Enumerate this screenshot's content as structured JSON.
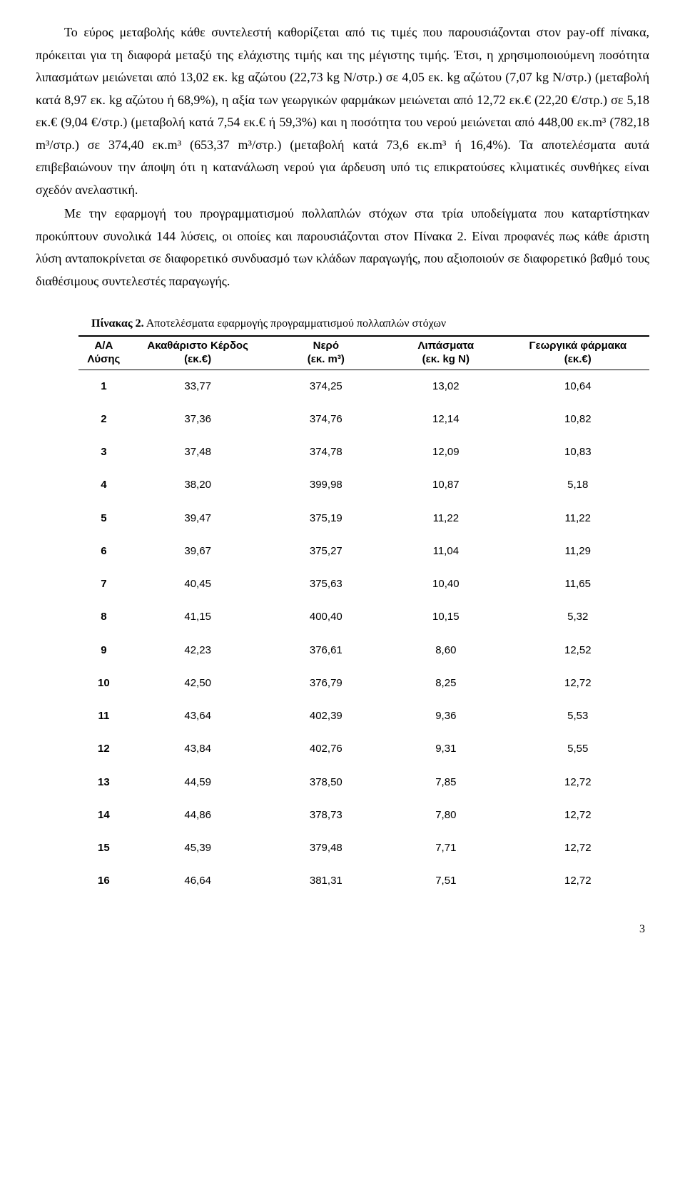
{
  "paragraphs": {
    "p1": "Το εύρος μεταβολής κάθε συντελεστή καθορίζεται από τις τιμές που παρουσιάζονται στον pay-off πίνακα, πρόκειται για τη διαφορά μεταξύ της ελάχιστης τιμής και της μέγιστης τιμής. Έτσι, η χρησιμοποιούμενη ποσότητα λιπασμάτων μειώνεται από 13,02 εκ. kg αζώτου (22,73 kg N/στρ.) σε 4,05 εκ. kg αζώτου (7,07 kg N/στρ.) (μεταβολή κατά 8,97 εκ. kg αζώτου ή 68,9%), η αξία των γεωργικών φαρμάκων μειώνεται από 12,72 εκ.€ (22,20 €/στρ.) σε 5,18 εκ.€ (9,04 €/στρ.) (μεταβολή κατά 7,54 εκ.€ ή 59,3%) και η ποσότητα του νερού μειώνεται από 448,00 εκ.m³ (782,18 m³/στρ.) σε 374,40 εκ.m³ (653,37 m³/στρ.) (μεταβολή κατά 73,6 εκ.m³ ή 16,4%). Τα αποτελέσματα αυτά επιβεβαιώνουν την άποψη ότι η κατανάλωση νερού για άρδευση υπό τις επικρατούσες κλιματικές συνθήκες είναι σχεδόν ανελαστική.",
    "p2": "Με την εφαρμογή του προγραμματισμού πολλαπλών στόχων στα τρία υποδείγματα που καταρτίστηκαν προκύπτουν συνολικά 144 λύσεις, οι οποίες και παρουσιάζονται στον Πίνακα 2. Είναι προφανές πως κάθε άριστη λύση ανταποκρίνεται σε διαφορετικό συνδυασμό των κλάδων παραγωγής, που αξιοποιούν σε διαφορετικό βαθμό τους διαθέσιμους συντελεστές παραγωγής."
  },
  "table": {
    "caption_bold": "Πίνακας 2.",
    "caption_rest": " Αποτελέσματα εφαρμογής προγραμματισμού πολλαπλών στόχων",
    "headers": {
      "c1a": "Α/Α",
      "c1b": "Λύσης",
      "c2a": "Ακαθάριστο Κέρδος",
      "c2b": "(εκ.€)",
      "c3a": "Νερό",
      "c3b": "(εκ. m³)",
      "c4a": "Λιπάσματα",
      "c4b": "(εκ. kg N)",
      "c5a": "Γεωργικά φάρμακα",
      "c5b": "(εκ.€)"
    },
    "rows": [
      [
        "1",
        "33,77",
        "374,25",
        "13,02",
        "10,64"
      ],
      [
        "2",
        "37,36",
        "374,76",
        "12,14",
        "10,82"
      ],
      [
        "3",
        "37,48",
        "374,78",
        "12,09",
        "10,83"
      ],
      [
        "4",
        "38,20",
        "399,98",
        "10,87",
        "5,18"
      ],
      [
        "5",
        "39,47",
        "375,19",
        "11,22",
        "11,22"
      ],
      [
        "6",
        "39,67",
        "375,27",
        "11,04",
        "11,29"
      ],
      [
        "7",
        "40,45",
        "375,63",
        "10,40",
        "11,65"
      ],
      [
        "8",
        "41,15",
        "400,40",
        "10,15",
        "5,32"
      ],
      [
        "9",
        "42,23",
        "376,61",
        "8,60",
        "12,52"
      ],
      [
        "10",
        "42,50",
        "376,79",
        "8,25",
        "12,72"
      ],
      [
        "11",
        "43,64",
        "402,39",
        "9,36",
        "5,53"
      ],
      [
        "12",
        "43,84",
        "402,76",
        "9,31",
        "5,55"
      ],
      [
        "13",
        "44,59",
        "378,50",
        "7,85",
        "12,72"
      ],
      [
        "14",
        "44,86",
        "378,73",
        "7,80",
        "12,72"
      ],
      [
        "15",
        "45,39",
        "379,48",
        "7,71",
        "12,72"
      ],
      [
        "16",
        "46,64",
        "381,31",
        "7,51",
        "12,72"
      ]
    ]
  },
  "page_number": "3"
}
